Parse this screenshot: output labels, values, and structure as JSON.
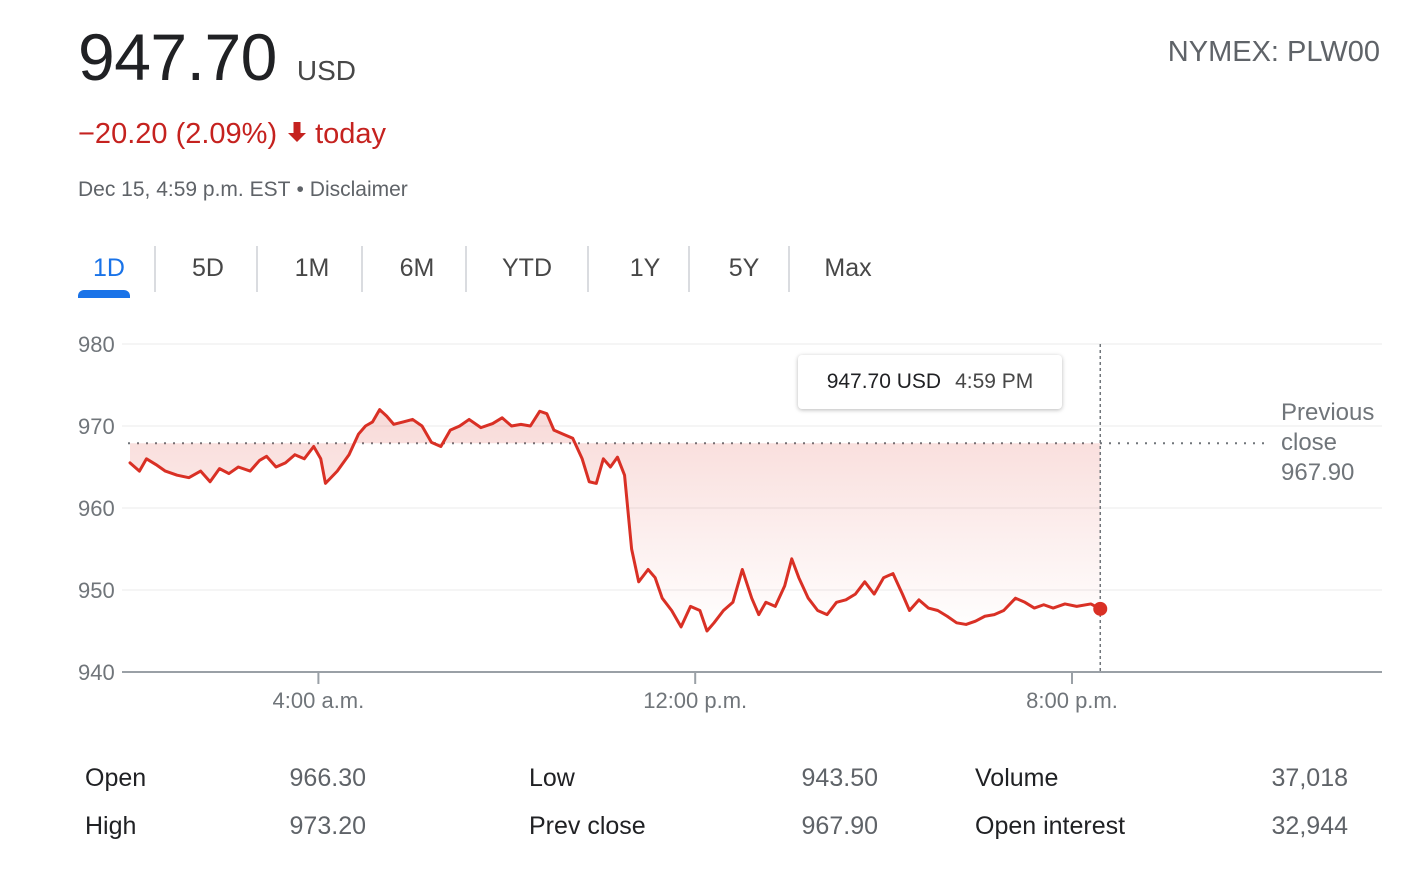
{
  "header": {
    "price": "947.70",
    "currency": "USD",
    "ticker": "NYMEX: PLW00",
    "change": "−20.20 (2.09%)",
    "change_suffix": "today",
    "timestamp": "Dec 15, 4:59 p.m. EST",
    "disclaimer": "Disclaimer",
    "change_color": "#c5221f"
  },
  "tabs": [
    {
      "label": "1D",
      "active": true
    },
    {
      "label": "5D",
      "active": false
    },
    {
      "label": "1M",
      "active": false
    },
    {
      "label": "6M",
      "active": false
    },
    {
      "label": "YTD",
      "active": false
    },
    {
      "label": "1Y",
      "active": false
    },
    {
      "label": "5Y",
      "active": false
    },
    {
      "label": "Max",
      "active": false
    }
  ],
  "tooltip": {
    "price": "947.70 USD",
    "time": "4:59 PM"
  },
  "prev_close_label": {
    "line1": "Previous",
    "line2": "close",
    "value": "967.90"
  },
  "chart_data": {
    "type": "area",
    "ylim": [
      940,
      980
    ],
    "y_ticks": [
      "980",
      "970",
      "960",
      "950",
      "940"
    ],
    "x_ticks": [
      {
        "label": "4:00 a.m.",
        "hour": 4
      },
      {
        "label": "12:00 p.m.",
        "hour": 12
      },
      {
        "label": "8:00 p.m.",
        "hour": 20
      }
    ],
    "xlim_hours": [
      0,
      23.5
    ],
    "previous_close": 967.9,
    "line_color": "#d93025",
    "series": [
      {
        "values": [
          [
            0.0,
            965.5
          ],
          [
            0.2,
            964.5
          ],
          [
            0.35,
            966.0
          ],
          [
            0.55,
            965.3
          ],
          [
            0.75,
            964.5
          ],
          [
            1.0,
            964.0
          ],
          [
            1.25,
            963.7
          ],
          [
            1.5,
            964.5
          ],
          [
            1.7,
            963.2
          ],
          [
            1.9,
            964.8
          ],
          [
            2.1,
            964.2
          ],
          [
            2.3,
            965.0
          ],
          [
            2.55,
            964.5
          ],
          [
            2.75,
            965.8
          ],
          [
            2.9,
            966.3
          ],
          [
            3.1,
            965.0
          ],
          [
            3.3,
            965.5
          ],
          [
            3.5,
            966.5
          ],
          [
            3.7,
            966.0
          ],
          [
            3.9,
            967.5
          ],
          [
            4.05,
            966.0
          ],
          [
            4.15,
            963.0
          ],
          [
            4.4,
            964.5
          ],
          [
            4.65,
            966.5
          ],
          [
            4.85,
            969.0
          ],
          [
            5.0,
            970.0
          ],
          [
            5.15,
            970.5
          ],
          [
            5.3,
            972.0
          ],
          [
            5.45,
            971.2
          ],
          [
            5.6,
            970.2
          ],
          [
            5.8,
            970.5
          ],
          [
            6.0,
            970.8
          ],
          [
            6.2,
            970.0
          ],
          [
            6.4,
            968.0
          ],
          [
            6.6,
            967.5
          ],
          [
            6.8,
            969.5
          ],
          [
            7.0,
            970.0
          ],
          [
            7.2,
            970.8
          ],
          [
            7.45,
            969.8
          ],
          [
            7.7,
            970.3
          ],
          [
            7.9,
            971.0
          ],
          [
            8.1,
            970.0
          ],
          [
            8.3,
            970.2
          ],
          [
            8.5,
            970.0
          ],
          [
            8.7,
            971.8
          ],
          [
            8.85,
            971.5
          ],
          [
            9.0,
            969.5
          ],
          [
            9.2,
            969.0
          ],
          [
            9.4,
            968.5
          ],
          [
            9.6,
            966.0
          ],
          [
            9.75,
            963.2
          ],
          [
            9.9,
            963.0
          ],
          [
            10.05,
            966.0
          ],
          [
            10.2,
            965.0
          ],
          [
            10.35,
            966.2
          ],
          [
            10.5,
            964.0
          ],
          [
            10.65,
            955.0
          ],
          [
            10.8,
            951.0
          ],
          [
            11.0,
            952.5
          ],
          [
            11.15,
            951.5
          ],
          [
            11.3,
            949.0
          ],
          [
            11.5,
            947.5
          ],
          [
            11.7,
            945.5
          ],
          [
            11.9,
            948.0
          ],
          [
            12.1,
            947.5
          ],
          [
            12.25,
            945.0
          ],
          [
            12.4,
            946.0
          ],
          [
            12.6,
            947.5
          ],
          [
            12.8,
            948.5
          ],
          [
            13.0,
            952.5
          ],
          [
            13.2,
            949.0
          ],
          [
            13.35,
            947.0
          ],
          [
            13.5,
            948.5
          ],
          [
            13.7,
            948.0
          ],
          [
            13.9,
            950.5
          ],
          [
            14.05,
            953.8
          ],
          [
            14.2,
            951.5
          ],
          [
            14.4,
            949.0
          ],
          [
            14.6,
            947.5
          ],
          [
            14.8,
            947.0
          ],
          [
            15.0,
            948.5
          ],
          [
            15.2,
            948.8
          ],
          [
            15.4,
            949.5
          ],
          [
            15.6,
            951.0
          ],
          [
            15.8,
            949.5
          ],
          [
            16.0,
            951.5
          ],
          [
            16.2,
            952.0
          ],
          [
            16.4,
            949.5
          ],
          [
            16.55,
            947.5
          ],
          [
            16.75,
            948.8
          ],
          [
            16.95,
            947.8
          ],
          [
            17.15,
            947.5
          ],
          [
            17.35,
            946.8
          ],
          [
            17.55,
            946.0
          ],
          [
            17.75,
            945.8
          ],
          [
            17.95,
            946.2
          ],
          [
            18.15,
            946.8
          ],
          [
            18.35,
            947.0
          ],
          [
            18.55,
            947.5
          ],
          [
            18.8,
            949.0
          ],
          [
            19.0,
            948.5
          ],
          [
            19.2,
            947.8
          ],
          [
            19.4,
            948.2
          ],
          [
            19.6,
            947.8
          ],
          [
            19.85,
            948.3
          ],
          [
            20.1,
            948.0
          ],
          [
            20.4,
            948.3
          ],
          [
            20.6,
            947.7
          ]
        ]
      }
    ]
  },
  "stats": {
    "col1": [
      {
        "label": "Open",
        "value": "966.30"
      },
      {
        "label": "High",
        "value": "973.20"
      }
    ],
    "col2": [
      {
        "label": "Low",
        "value": "943.50"
      },
      {
        "label": "Prev close",
        "value": "967.90"
      }
    ],
    "col3": [
      {
        "label": "Volume",
        "value": "37,018"
      },
      {
        "label": "Open interest",
        "value": "32,944"
      }
    ]
  }
}
